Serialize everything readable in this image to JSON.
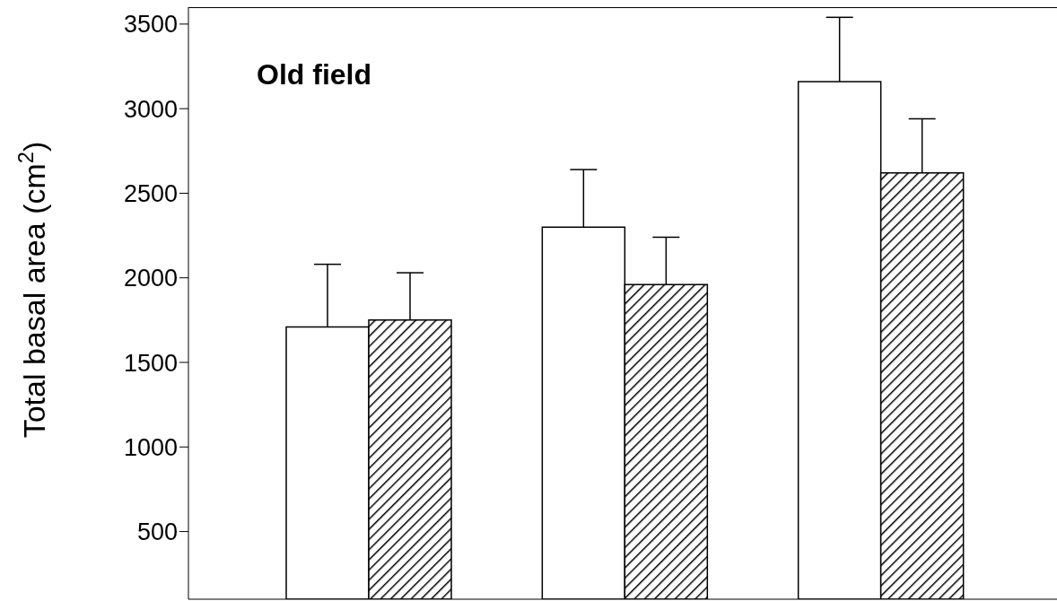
{
  "chart_data": {
    "type": "bar",
    "title": "Old field",
    "ylabel": "Total basal area (cm$^{2}$)",
    "categories": [
      null,
      null,
      null
    ],
    "series": [
      {
        "color": "#ffffff",
        "values": [
          1710,
          2300,
          3160
        ],
        "errors": [
          [
            1710,
            2080
          ],
          [
            2300,
            2640
          ],
          [
            3160,
            3540
          ]
        ]
      },
      {
        "color": "#000000",
        "values": [
          1750,
          1960,
          2620
        ],
        "errors": [
          [
            1750,
            2030
          ],
          [
            1960,
            2240
          ],
          [
            2620,
            2940
          ]
        ]
      }
    ],
    "ylim": [
      100,
      3600
    ],
    "yticks": [
      500,
      1000,
      1500,
      2000,
      2500,
      3000,
      3500
    ],
    "grid": false,
    "legend": false
  }
}
